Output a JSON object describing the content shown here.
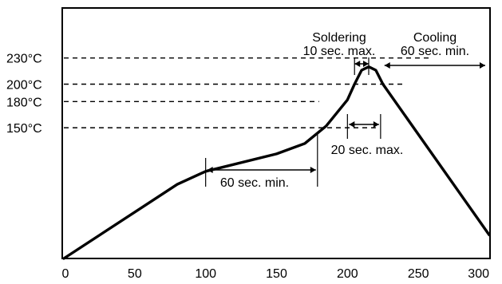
{
  "chart_data": {
    "type": "line",
    "title": "",
    "xlabel": "",
    "ylabel": "",
    "xlim": [
      0,
      300
    ],
    "ylim": [
      0,
      250
    ],
    "x_ticks": [
      "0",
      "50",
      "100",
      "150",
      "200",
      "250",
      "300"
    ],
    "y_ref_lines": [
      {
        "value": 230,
        "label": "230°C",
        "x_end": 260
      },
      {
        "value": 200,
        "label": "200°C",
        "x_end": 240
      },
      {
        "value": 180,
        "label": "180°C",
        "x_end": 180
      },
      {
        "value": 150,
        "label": "150°C",
        "x_end": 220
      }
    ],
    "series": [
      {
        "values": [
          [
            0,
            0
          ],
          [
            80,
            85
          ],
          [
            100,
            100
          ],
          [
            150,
            120
          ],
          [
            170,
            132
          ],
          [
            185,
            152
          ],
          [
            200,
            182
          ],
          [
            205,
            200
          ],
          [
            210,
            216
          ],
          [
            215,
            220
          ],
          [
            220,
            216
          ],
          [
            225,
            200
          ],
          [
            300,
            27
          ]
        ]
      }
    ],
    "annotations": [
      {
        "id": "soldering",
        "lines": [
          "Soldering",
          "10 sec. max."
        ],
        "x": 209,
        "y": 230,
        "range": [
          205,
          215
        ]
      },
      {
        "id": "cooling",
        "lines": [
          "Cooling",
          "60 sec. min."
        ],
        "x": 263,
        "y": 230,
        "range": [
          225,
          300
        ]
      },
      {
        "id": "twenty",
        "lines": [
          "20 sec. max."
        ],
        "x": 220,
        "y": 162,
        "range": [
          200,
          220
        ]
      },
      {
        "id": "sixty",
        "lines": [
          "60 sec. min."
        ],
        "x": 140,
        "y": 107,
        "range": [
          100,
          180
        ]
      }
    ]
  }
}
